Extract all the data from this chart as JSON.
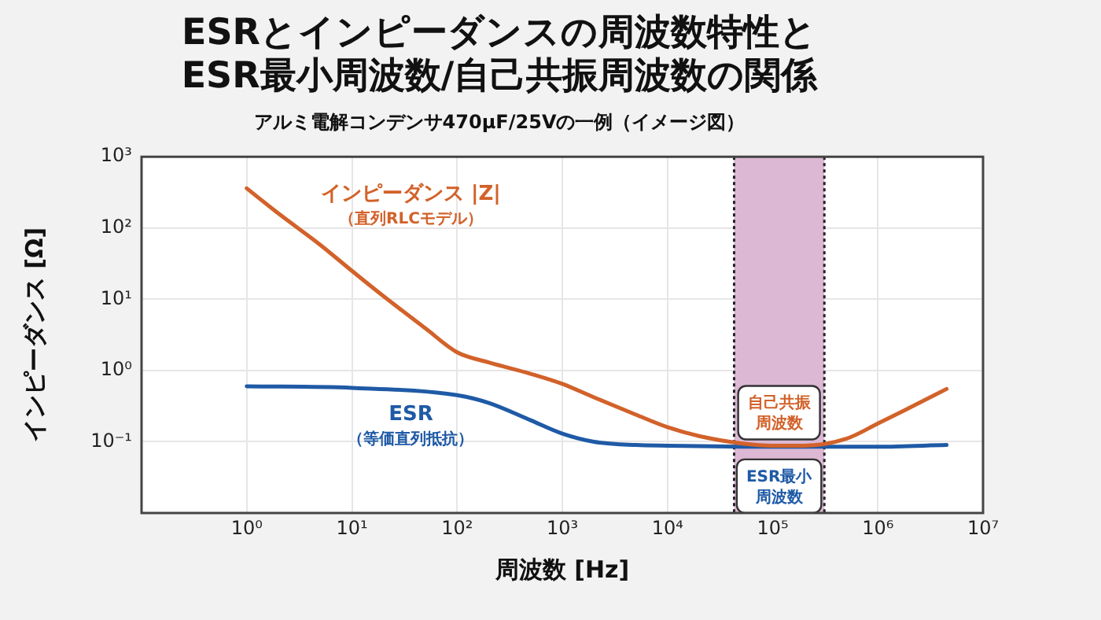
{
  "chart_data": {
    "type": "line",
    "title": "ESRとインピーダンスの周波数特性と\nESR最小周波数/自己共振周波数の関係",
    "subtitle": "アルミ電解コンデンサ470µF/25Vの一例（イメージ図）",
    "xlabel": "周波数 [Hz]",
    "ylabel": "インピーダンス [Ω]",
    "log": "xy",
    "grid": true,
    "legend": false,
    "marker": "none",
    "line_style": "solid",
    "xlim": [
      0.1,
      10000000
    ],
    "ylim": [
      0.01,
      1000
    ],
    "xticks": [
      {
        "value": 0.1,
        "label": null
      },
      {
        "value": 1,
        "label": "10⁰"
      },
      {
        "value": 10,
        "label": "10¹"
      },
      {
        "value": 100,
        "label": "10²"
      },
      {
        "value": 1000,
        "label": "10³"
      },
      {
        "value": 10000,
        "label": "10⁴"
      },
      {
        "value": 100000,
        "label": "10⁵"
      },
      {
        "value": 1000000,
        "label": "10⁶"
      },
      {
        "value": 10000000,
        "label": "10⁷"
      }
    ],
    "yticks": [
      {
        "value": 0.01,
        "label": null
      },
      {
        "value": 0.1,
        "label": "10⁻¹"
      },
      {
        "value": 1,
        "label": "10⁰"
      },
      {
        "value": 10,
        "label": "10¹"
      },
      {
        "value": 100,
        "label": "10²"
      },
      {
        "value": 1000,
        "label": "10³"
      }
    ],
    "series": [
      {
        "name": "インピーダンス |Z|\n（直列RLCモデル）",
        "color": "#d2622a",
        "x": [
          1,
          2,
          5,
          10,
          20,
          50,
          100,
          200,
          500,
          1000,
          2000,
          5000,
          10000,
          20000,
          50000,
          100000,
          200000,
          500000,
          1000000,
          2000000,
          4500000
        ],
        "values": [
          360,
          160,
          58,
          25,
          11,
          3.9,
          1.8,
          1.3,
          0.9,
          0.65,
          0.42,
          0.24,
          0.16,
          0.12,
          0.095,
          0.088,
          0.088,
          0.11,
          0.18,
          0.3,
          0.55
        ]
      },
      {
        "name": "ESR\n（等価直列抵抗）",
        "color": "#1f5aa6",
        "x": [
          1,
          10,
          100,
          200,
          500,
          1000,
          2000,
          5000,
          10000,
          100000,
          1000000,
          4500000
        ],
        "values": [
          0.6,
          0.57,
          0.45,
          0.35,
          0.2,
          0.13,
          0.1,
          0.09,
          0.088,
          0.085,
          0.085,
          0.09
        ]
      }
    ],
    "bands": [
      {
        "axis": "x",
        "from": 43000,
        "to": 310000,
        "color": "#dcb8d4"
      }
    ],
    "ref_lines": [
      {
        "axis": "x",
        "value": 43000,
        "color": "#222222",
        "line_style": "dotted"
      },
      {
        "axis": "x",
        "value": 310000,
        "color": "#222222",
        "line_style": "dotted"
      }
    ],
    "annotations": [
      {
        "text": "自己共振周波数",
        "x": 115000,
        "y": 0.088
      },
      {
        "text": "ESR最小周波数",
        "x": 115000,
        "y": 0.085
      }
    ]
  }
}
